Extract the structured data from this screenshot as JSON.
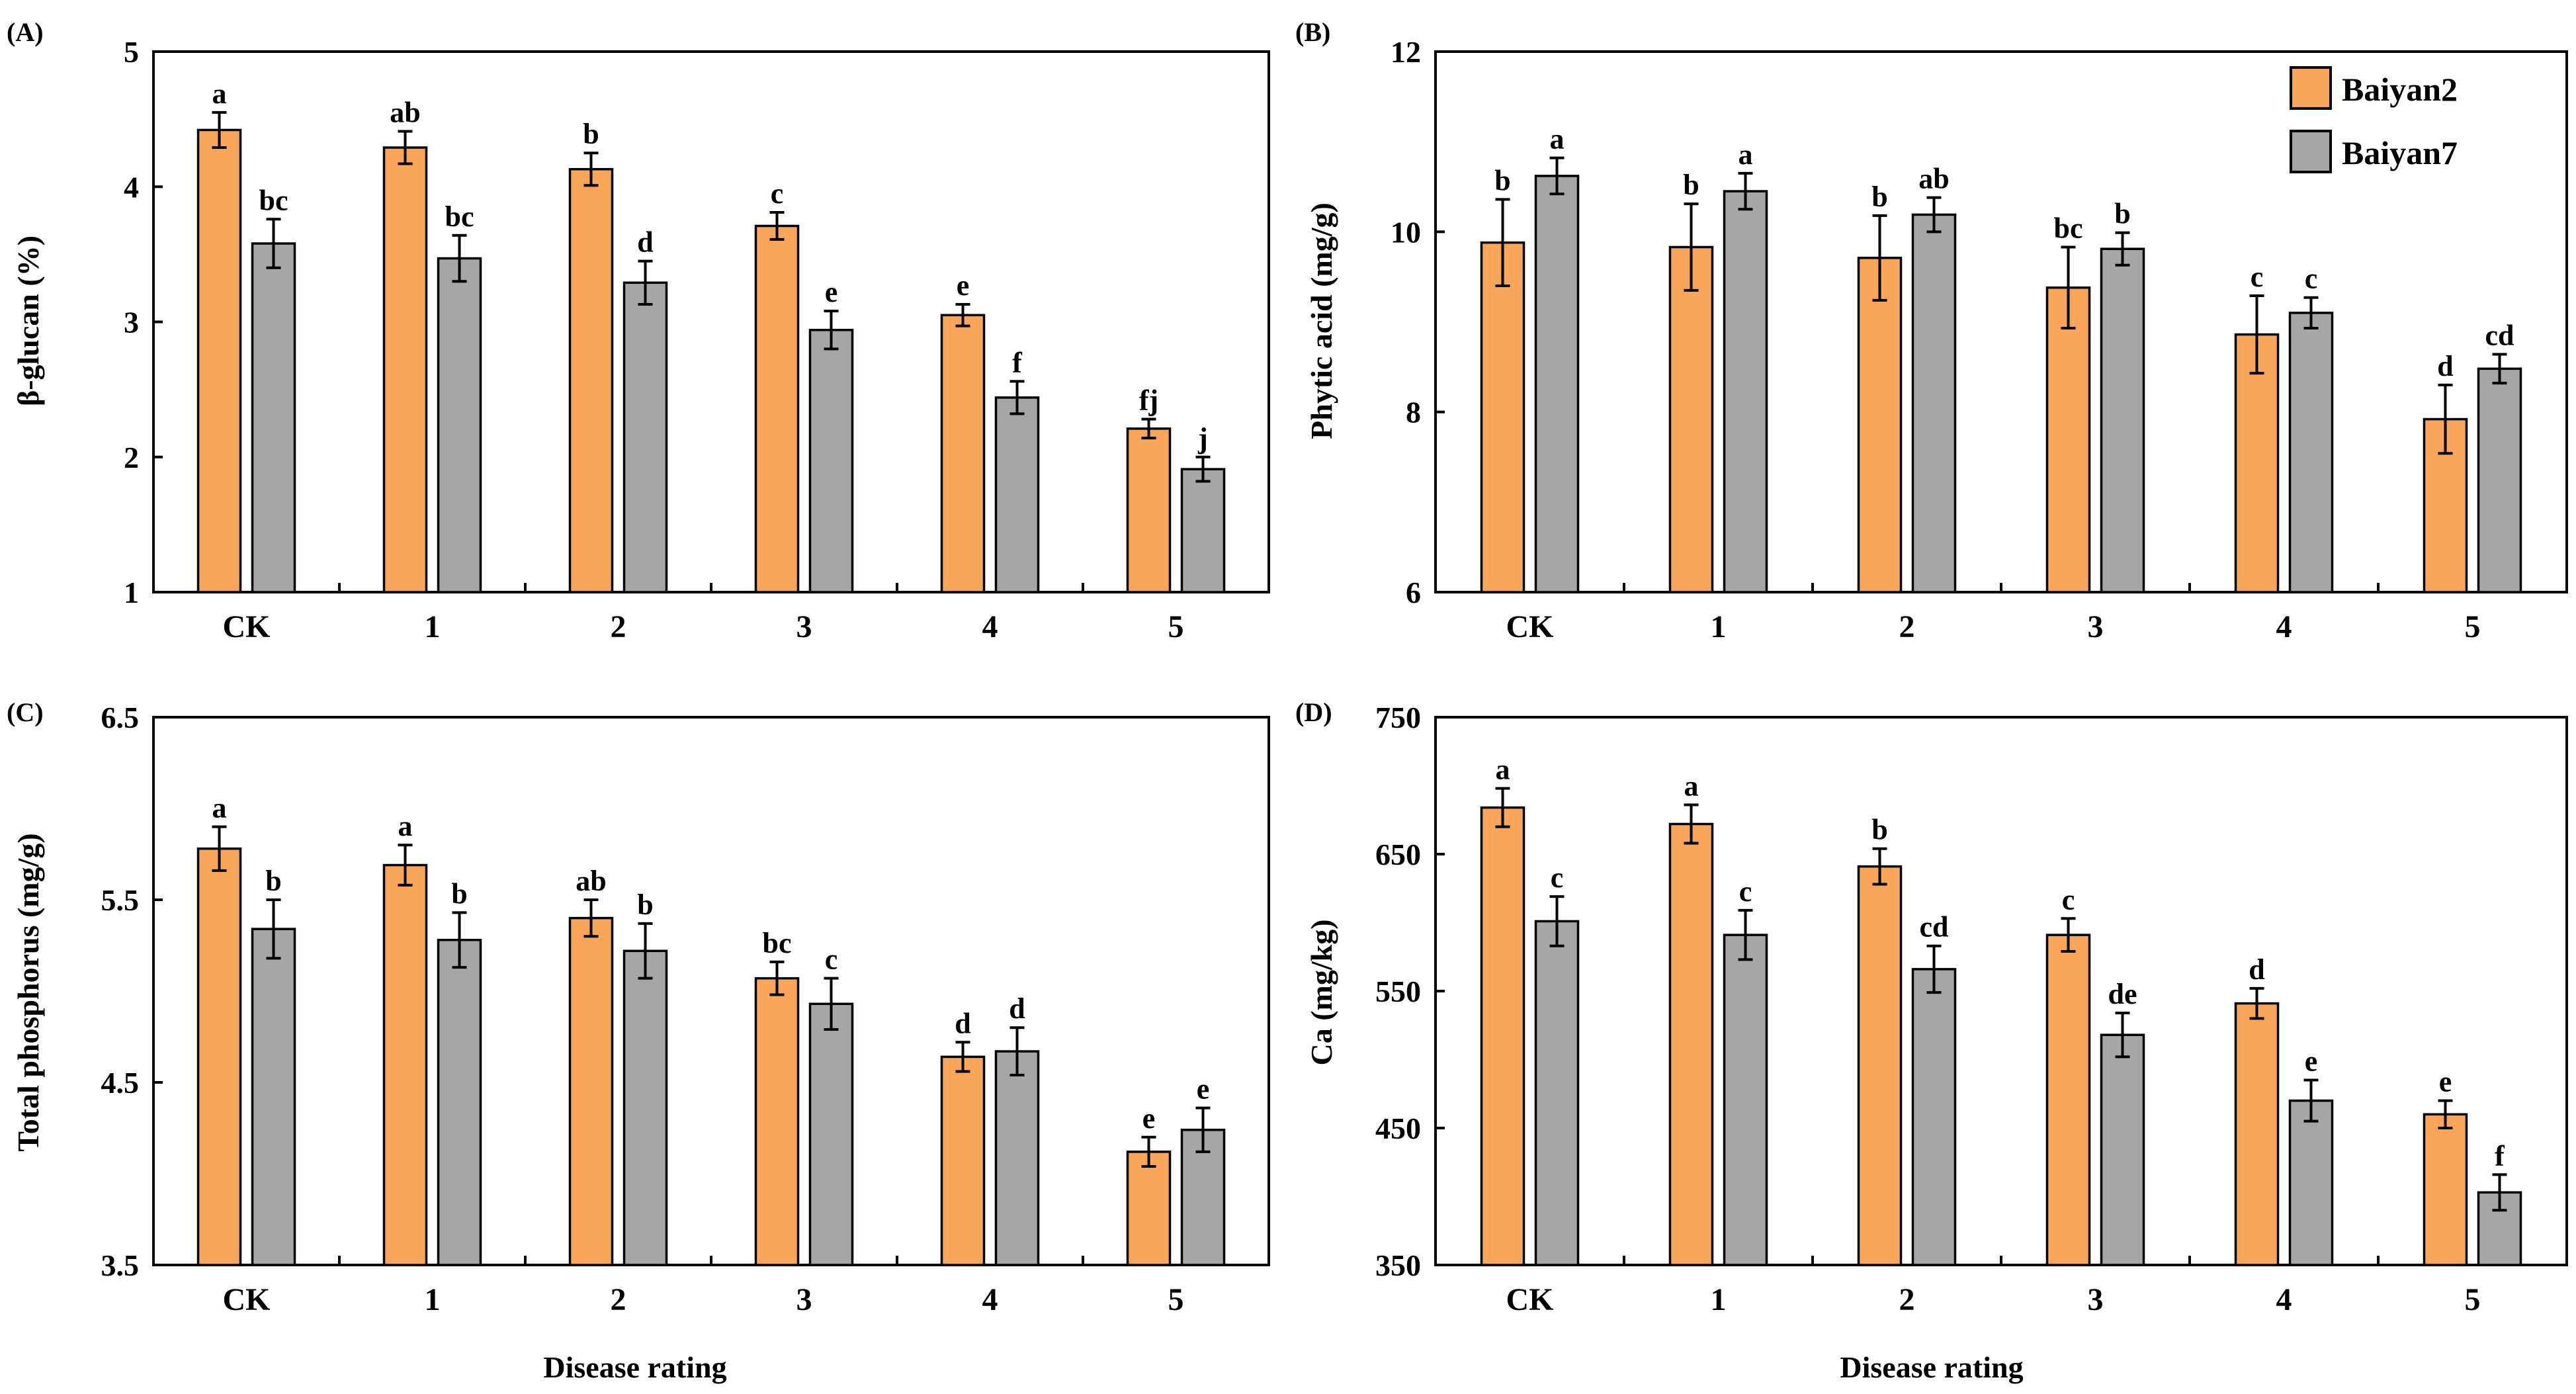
{
  "figure": {
    "bar_colors": {
      "Baiyan2": "#F9A55A",
      "Baiyan7": "#A6A6A6"
    },
    "legend": [
      {
        "label": "Baiyan2",
        "color": "#F9A55A"
      },
      {
        "label": "Baiyan7",
        "color": "#A6A6A6"
      }
    ]
  },
  "chart_data": [
    {
      "id": "A",
      "panel_label": "(A)",
      "type": "bar",
      "title": "",
      "ylabel": "β-glucan (%)",
      "xlabel": "",
      "ylim": [
        1,
        5
      ],
      "yticks": [
        1,
        2,
        3,
        4,
        5
      ],
      "ytick_labels": [
        "1",
        "2",
        "3",
        "4",
        "5"
      ],
      "categories": [
        "CK",
        "1",
        "2",
        "3",
        "4",
        "5"
      ],
      "series": [
        {
          "name": "Baiyan2",
          "values": [
            4.42,
            4.29,
            4.13,
            3.71,
            3.05,
            2.21
          ],
          "errors": [
            0.13,
            0.12,
            0.12,
            0.1,
            0.08,
            0.07
          ],
          "labels": [
            "a",
            "ab",
            "b",
            "c",
            "e",
            "fj"
          ]
        },
        {
          "name": "Baiyan7",
          "values": [
            3.58,
            3.47,
            3.29,
            2.94,
            2.44,
            1.91
          ],
          "errors": [
            0.18,
            0.17,
            0.16,
            0.14,
            0.12,
            0.09
          ],
          "labels": [
            "bc",
            "bc",
            "d",
            "e",
            "f",
            "j"
          ]
        }
      ]
    },
    {
      "id": "B",
      "panel_label": "(B)",
      "type": "bar",
      "title": "",
      "ylabel": "Phytic acid (mg/g)",
      "xlabel": "",
      "ylim": [
        6,
        12
      ],
      "yticks": [
        6,
        8,
        10,
        12
      ],
      "ytick_labels": [
        "6",
        "8",
        "10",
        "12"
      ],
      "categories": [
        "CK",
        "1",
        "2",
        "3",
        "4",
        "5"
      ],
      "legend_position": "top-right",
      "series": [
        {
          "name": "Baiyan2",
          "values": [
            9.88,
            9.83,
            9.71,
            9.38,
            8.86,
            7.92
          ],
          "errors": [
            0.48,
            0.48,
            0.47,
            0.45,
            0.43,
            0.38
          ],
          "labels": [
            "b",
            "b",
            "b",
            "bc",
            "c",
            "d"
          ]
        },
        {
          "name": "Baiyan7",
          "values": [
            10.62,
            10.45,
            10.19,
            9.81,
            9.1,
            8.48
          ],
          "errors": [
            0.2,
            0.2,
            0.19,
            0.18,
            0.17,
            0.16
          ],
          "labels": [
            "a",
            "a",
            "ab",
            "b",
            "c",
            "cd"
          ]
        }
      ]
    },
    {
      "id": "C",
      "panel_label": "(C)",
      "type": "bar",
      "title": "",
      "ylabel": "Total phosphorus (mg/g)",
      "xlabel": "Disease rating",
      "ylim": [
        3.5,
        6.5
      ],
      "yticks": [
        3.5,
        4.5,
        5.5,
        6.5
      ],
      "ytick_labels": [
        "3.5",
        "4.5",
        "5.5",
        "6.5"
      ],
      "categories": [
        "CK",
        "1",
        "2",
        "3",
        "4",
        "5"
      ],
      "series": [
        {
          "name": "Baiyan2",
          "values": [
            5.78,
            5.69,
            5.4,
            5.07,
            4.64,
            4.12
          ],
          "errors": [
            0.12,
            0.11,
            0.1,
            0.09,
            0.08,
            0.08
          ],
          "labels": [
            "a",
            "a",
            "ab",
            "bc",
            "d",
            "e"
          ]
        },
        {
          "name": "Baiyan7",
          "values": [
            5.34,
            5.28,
            5.22,
            4.93,
            4.67,
            4.24
          ],
          "errors": [
            0.16,
            0.15,
            0.15,
            0.14,
            0.13,
            0.12
          ],
          "labels": [
            "b",
            "b",
            "b",
            "c",
            "d",
            "e"
          ]
        }
      ]
    },
    {
      "id": "D",
      "panel_label": "(D)",
      "type": "bar",
      "title": "",
      "ylabel": "Ca (mg/kg)",
      "xlabel": "Disease rating",
      "ylim": [
        350,
        750
      ],
      "yticks": [
        350,
        450,
        550,
        650,
        750
      ],
      "ytick_labels": [
        "350",
        "450",
        "550",
        "650",
        "750"
      ],
      "categories": [
        "CK",
        "1",
        "2",
        "3",
        "4",
        "5"
      ],
      "series": [
        {
          "name": "Baiyan2",
          "values": [
            684,
            672,
            641,
            591,
            541,
            460
          ],
          "errors": [
            14,
            14,
            13,
            12,
            11,
            10
          ],
          "labels": [
            "a",
            "a",
            "b",
            "c",
            "d",
            "e"
          ]
        },
        {
          "name": "Baiyan7",
          "values": [
            601,
            591,
            566,
            518,
            470,
            403
          ],
          "errors": [
            18,
            18,
            17,
            16,
            15,
            13
          ],
          "labels": [
            "c",
            "c",
            "cd",
            "de",
            "e",
            "f"
          ]
        }
      ]
    }
  ]
}
